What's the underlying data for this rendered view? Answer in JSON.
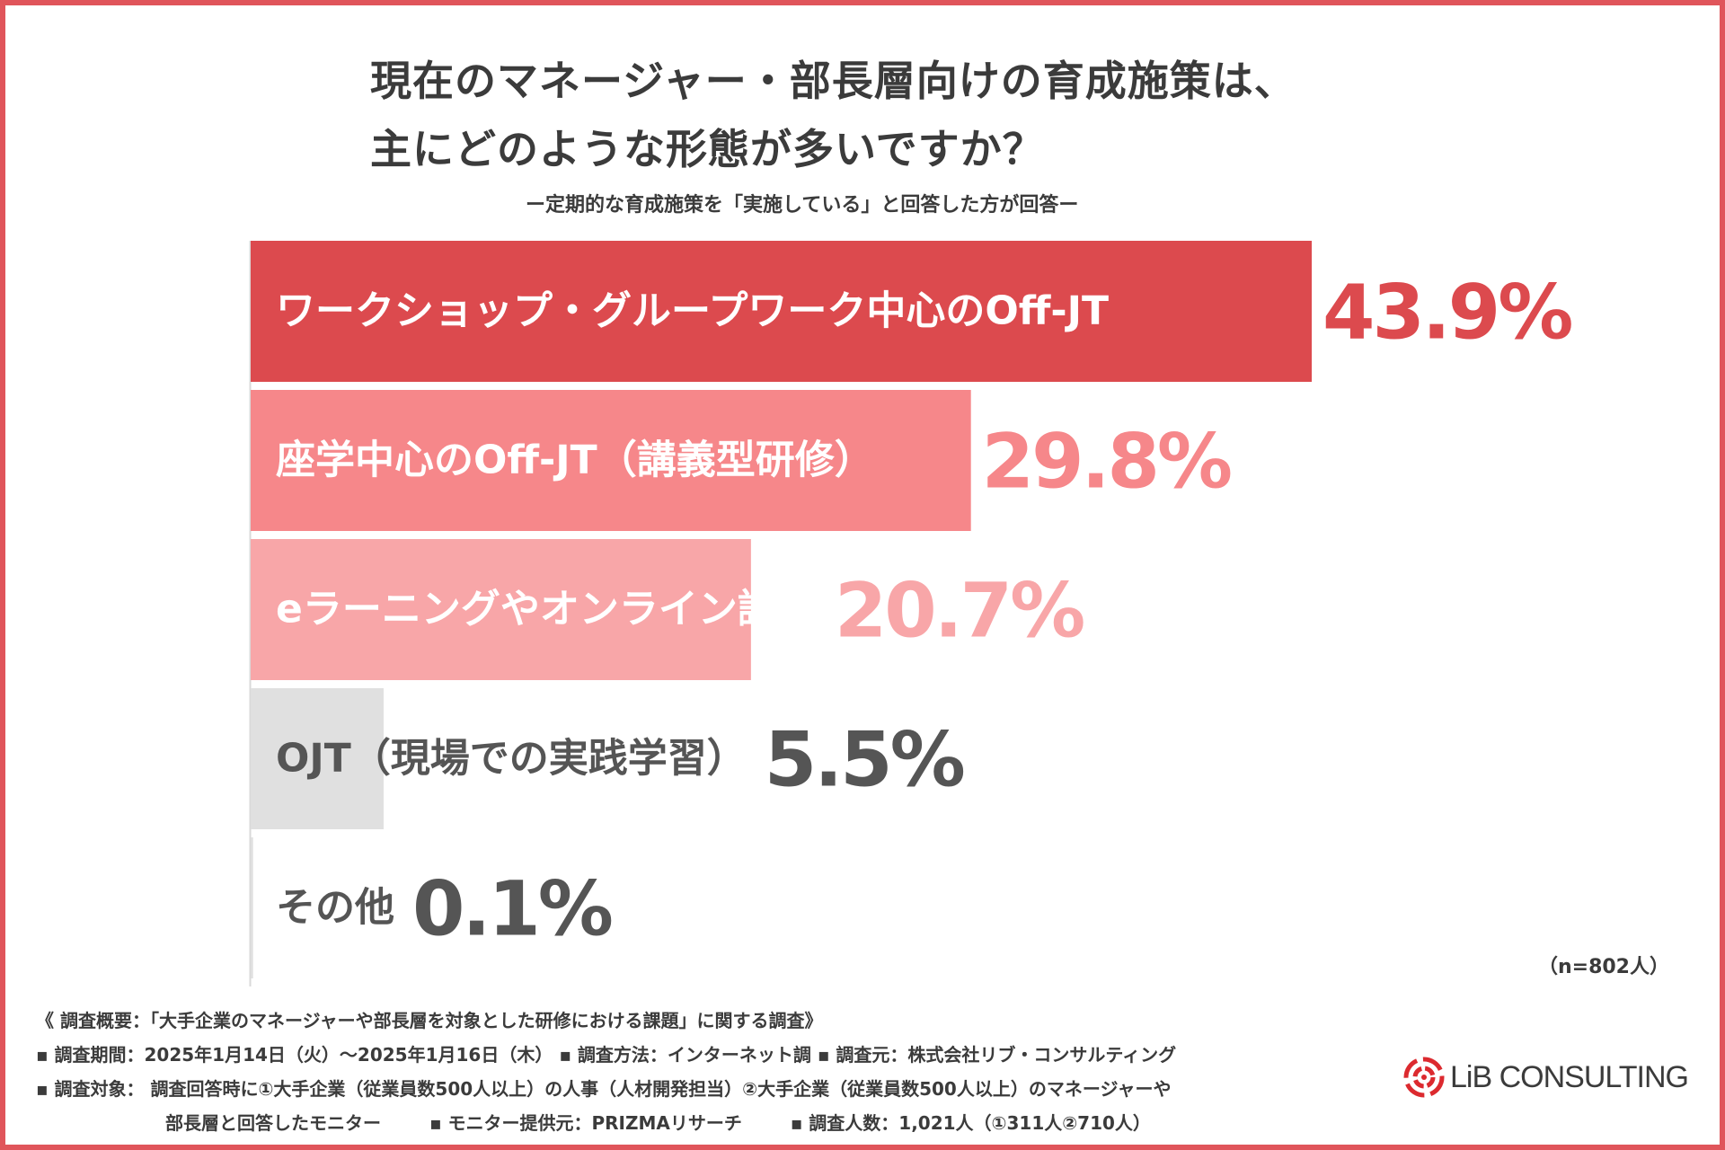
{
  "title": {
    "line1": "現在のマネージャー・部長層向けの育成施策は、",
    "line2": "主にどのような形態が多いですか？"
  },
  "subtitle": "ー定期的な育成施策を「実施している」と回答した方が回答ー",
  "chart_data": {
    "type": "bar",
    "orientation": "horizontal",
    "title": "現在のマネージャー・部長層向けの育成施策は、主にどのような形態が多いですか？",
    "categories": [
      "ワークショップ・グループワーク中心のOff-JT",
      "座学中心のOff-JT（講義型研修）",
      "eラーニングやオンライン講義",
      "OJT（現場での実践学習）",
      "その他"
    ],
    "values": [
      43.9,
      29.8,
      20.7,
      5.5,
      0.1
    ],
    "value_labels": [
      "43.9%",
      "29.8%",
      "20.7%",
      "5.5%",
      "0.1%"
    ],
    "unit": "%",
    "xlim": [
      0,
      100
    ],
    "colors": {
      "bars": [
        "#dc4a4e",
        "#f6878a",
        "#f8a6a8",
        "#e0e0e0",
        "#e0e0e0"
      ],
      "bar_labels": [
        "#ffffff",
        "#ffffff",
        "#ffffff",
        "#555555",
        "#555555"
      ],
      "value_labels": [
        "#dc4a4e",
        "#f6878a",
        "#f8a6a8",
        "#555555",
        "#555555"
      ]
    },
    "grid": false,
    "legend": "none"
  },
  "sample_size": "（n=802人）",
  "footer": {
    "overview": "《 調査概要：「大手企業のマネージャーや部長層を対象とした研修における課題」に関する調査》",
    "period": "▪ 調査期間：2025年1月14日（火）～2025年1月16日（木）",
    "method": "▪ 調査方法：インターネット調",
    "source": "▪ 調査元：株式会社リブ・コンサルティング",
    "target": "▪ 調査対象： 調査回答時に①大手企業（従業員数500人以上）の人事（人材開発担当）②大手企業（従業員数500人以上）のマネージャーや",
    "target_cont": "部長層と回答したモニター",
    "provider": "▪ モニター提供元：PRIZMAリサーチ",
    "count": "▪ 調査人数：1,021人（①311人②710人）"
  },
  "logo": {
    "text": "LiB CONSULTING",
    "accent": "#dc2a2f"
  }
}
